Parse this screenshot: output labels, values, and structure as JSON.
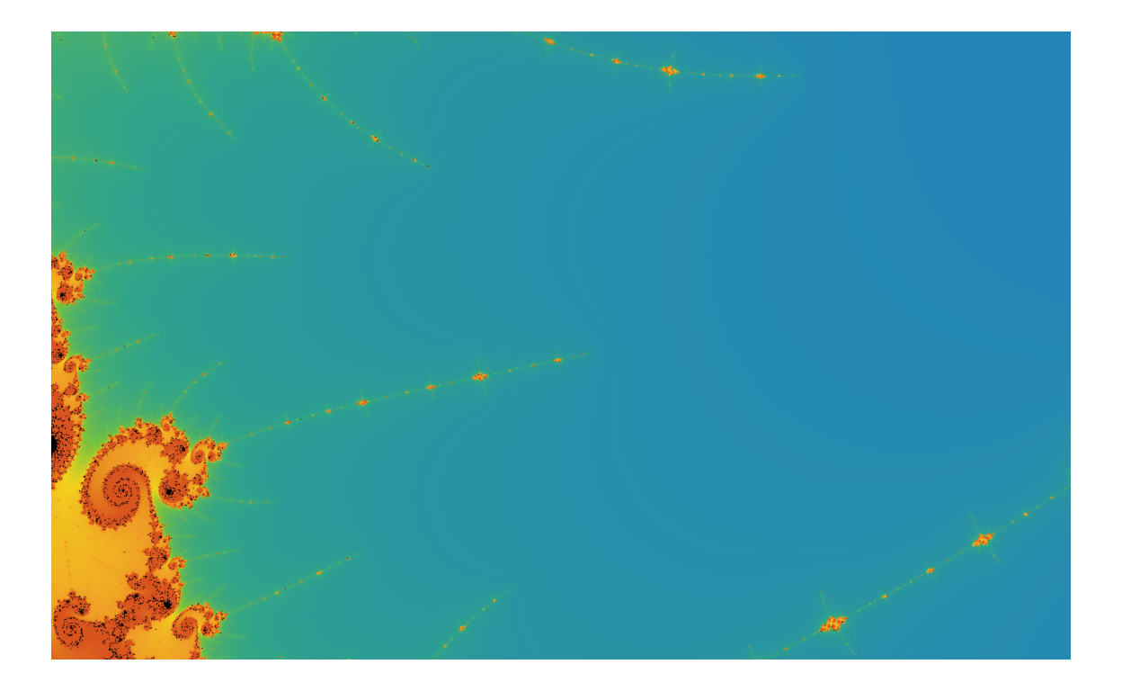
{
  "image": {
    "subject": "mandelbrot-set-minibrot",
    "palette": {
      "background": "#ffffff",
      "interior": "#000000",
      "stops": [
        "#f3f7fd",
        "#c6dcf2",
        "#3c8fd6",
        "#1f7ac8",
        "#2fa48a",
        "#7cc43a",
        "#f2d21c",
        "#f0a126",
        "#e88b1e",
        "#d9531e"
      ]
    },
    "interactive": false
  }
}
